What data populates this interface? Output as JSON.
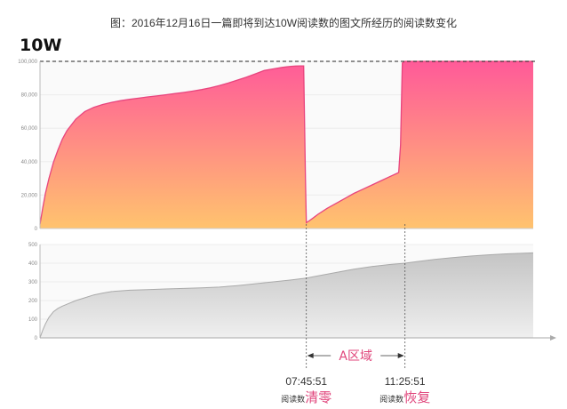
{
  "title": "图：2016年12月16日一篇即将到达10W阅读数的图文所经历的阅读数变化",
  "corner_label": "10W",
  "colors": {
    "gradient_top": "#ff5a99",
    "gradient_bottom": "#ffc36e",
    "grey_fill": "#d2d2d2",
    "annotation": "#e0457b"
  },
  "chart_data": [
    {
      "type": "area",
      "title": "",
      "y_ticks": [
        "0",
        "20,000",
        "40,000",
        "60,000",
        "80,000",
        "100,000"
      ],
      "ylim": [
        0,
        100000
      ],
      "reference_line": 100000,
      "x": [
        0,
        3,
        6,
        10,
        15,
        20,
        25,
        30,
        40,
        50,
        60,
        70,
        80,
        90,
        100,
        110,
        120,
        130,
        140,
        150,
        160,
        170,
        180,
        190,
        200,
        210,
        220,
        230,
        240,
        250,
        260,
        270,
        275,
        280,
        285,
        290,
        294,
        296,
        297,
        300,
        305,
        310,
        320,
        330,
        340,
        350,
        360,
        370,
        380,
        390,
        398,
        400,
        402,
        404,
        407,
        410,
        420,
        450,
        500,
        550
      ],
      "values": [
        2500,
        12000,
        21000,
        30000,
        39500,
        47000,
        53500,
        58500,
        65500,
        70000,
        72500,
        74200,
        75500,
        76500,
        77300,
        78000,
        78700,
        79300,
        80000,
        80700,
        81400,
        82200,
        83100,
        84200,
        85500,
        87000,
        88800,
        90500,
        92500,
        94500,
        95500,
        96400,
        96700,
        97000,
        97200,
        97300,
        97300,
        30000,
        3500,
        4500,
        6500,
        8500,
        12000,
        15000,
        18000,
        21000,
        23500,
        26000,
        28500,
        31000,
        33000,
        33500,
        50000,
        99000,
        100000,
        100000,
        100000,
        100000,
        100000,
        100000
      ]
    },
    {
      "type": "area",
      "title": "",
      "y_ticks": [
        "0",
        "100",
        "200",
        "300",
        "400",
        "500"
      ],
      "ylim": [
        0,
        500
      ],
      "x": [
        0,
        3,
        6,
        10,
        15,
        20,
        25,
        30,
        40,
        50,
        60,
        70,
        80,
        100,
        120,
        140,
        160,
        180,
        200,
        220,
        240,
        260,
        280,
        297,
        310,
        330,
        350,
        370,
        390,
        407,
        420,
        440,
        460,
        480,
        500,
        520,
        550
      ],
      "values": [
        0,
        40,
        75,
        110,
        140,
        158,
        170,
        180,
        200,
        215,
        230,
        240,
        248,
        255,
        258,
        262,
        265,
        268,
        272,
        280,
        290,
        300,
        310,
        320,
        332,
        350,
        368,
        382,
        393,
        400,
        408,
        420,
        430,
        438,
        445,
        450,
        455
      ]
    }
  ],
  "annotations": {
    "zone_label": "A区域",
    "start_time": "07:45:51",
    "end_time": "11:25:51",
    "start_caption_small": "阅读数",
    "start_caption_big": "清零",
    "end_caption_small": "阅读数",
    "end_caption_big": "恢复"
  }
}
